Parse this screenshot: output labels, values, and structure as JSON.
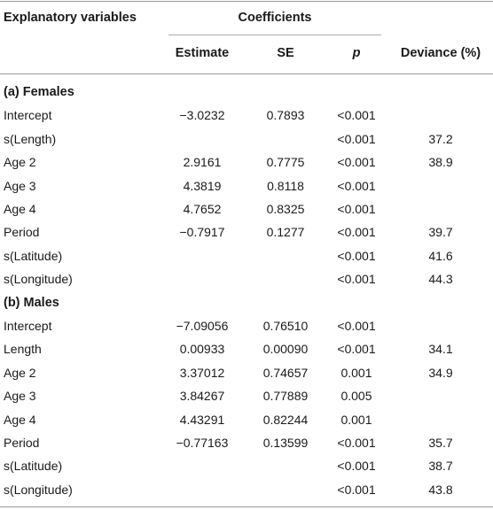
{
  "headers": {
    "explanatory": "Explanatory variables",
    "coefficients": "Coefficients",
    "estimate": "Estimate",
    "se": "SE",
    "p": "p",
    "deviance": "Deviance (%)"
  },
  "females": {
    "title": "(a) Females",
    "rows": [
      {
        "var": "Intercept",
        "est": "−3.0232",
        "se": "0.7893",
        "p": "<0.001",
        "dev": ""
      },
      {
        "var": "s(Length)",
        "est": "",
        "se": "",
        "p": "<0.001",
        "dev": "37.2"
      },
      {
        "var": "Age 2",
        "est": "2.9161",
        "se": "0.7775",
        "p": "<0.001",
        "dev": "38.9"
      },
      {
        "var": "Age 3",
        "est": "4.3819",
        "se": "0.8118",
        "p": "<0.001",
        "dev": ""
      },
      {
        "var": "Age 4",
        "est": "4.7652",
        "se": "0.8325",
        "p": "<0.001",
        "dev": ""
      },
      {
        "var": "Period",
        "est": "−0.7917",
        "se": "0.1277",
        "p": "<0.001",
        "dev": "39.7"
      },
      {
        "var": "s(Latitude)",
        "est": "",
        "se": "",
        "p": "<0.001",
        "dev": "41.6"
      },
      {
        "var": "s(Longitude)",
        "est": "",
        "se": "",
        "p": "<0.001",
        "dev": "44.3"
      }
    ]
  },
  "males": {
    "title": "(b) Males",
    "rows": [
      {
        "var": "Intercept",
        "est": "−7.09056",
        "se": "0.76510",
        "p": "<0.001",
        "dev": ""
      },
      {
        "var": "Length",
        "est": "0.00933",
        "se": "0.00090",
        "p": "<0.001",
        "dev": "34.1"
      },
      {
        "var": "Age 2",
        "est": "3.37012",
        "se": "0.74657",
        "p": "0.001",
        "dev": "34.9"
      },
      {
        "var": "Age 3",
        "est": "3.84267",
        "se": "0.77889",
        "p": "0.005",
        "dev": ""
      },
      {
        "var": "Age 4",
        "est": "4.43291",
        "se": "0.82244",
        "p": "0.001",
        "dev": ""
      },
      {
        "var": "Period",
        "est": "−0.77163",
        "se": "0.13599",
        "p": "<0.001",
        "dev": "35.7"
      },
      {
        "var": "s(Latitude)",
        "est": "",
        "se": "",
        "p": "<0.001",
        "dev": "38.7"
      },
      {
        "var": "s(Longitude)",
        "est": "",
        "se": "",
        "p": "<0.001",
        "dev": "43.8"
      }
    ]
  }
}
